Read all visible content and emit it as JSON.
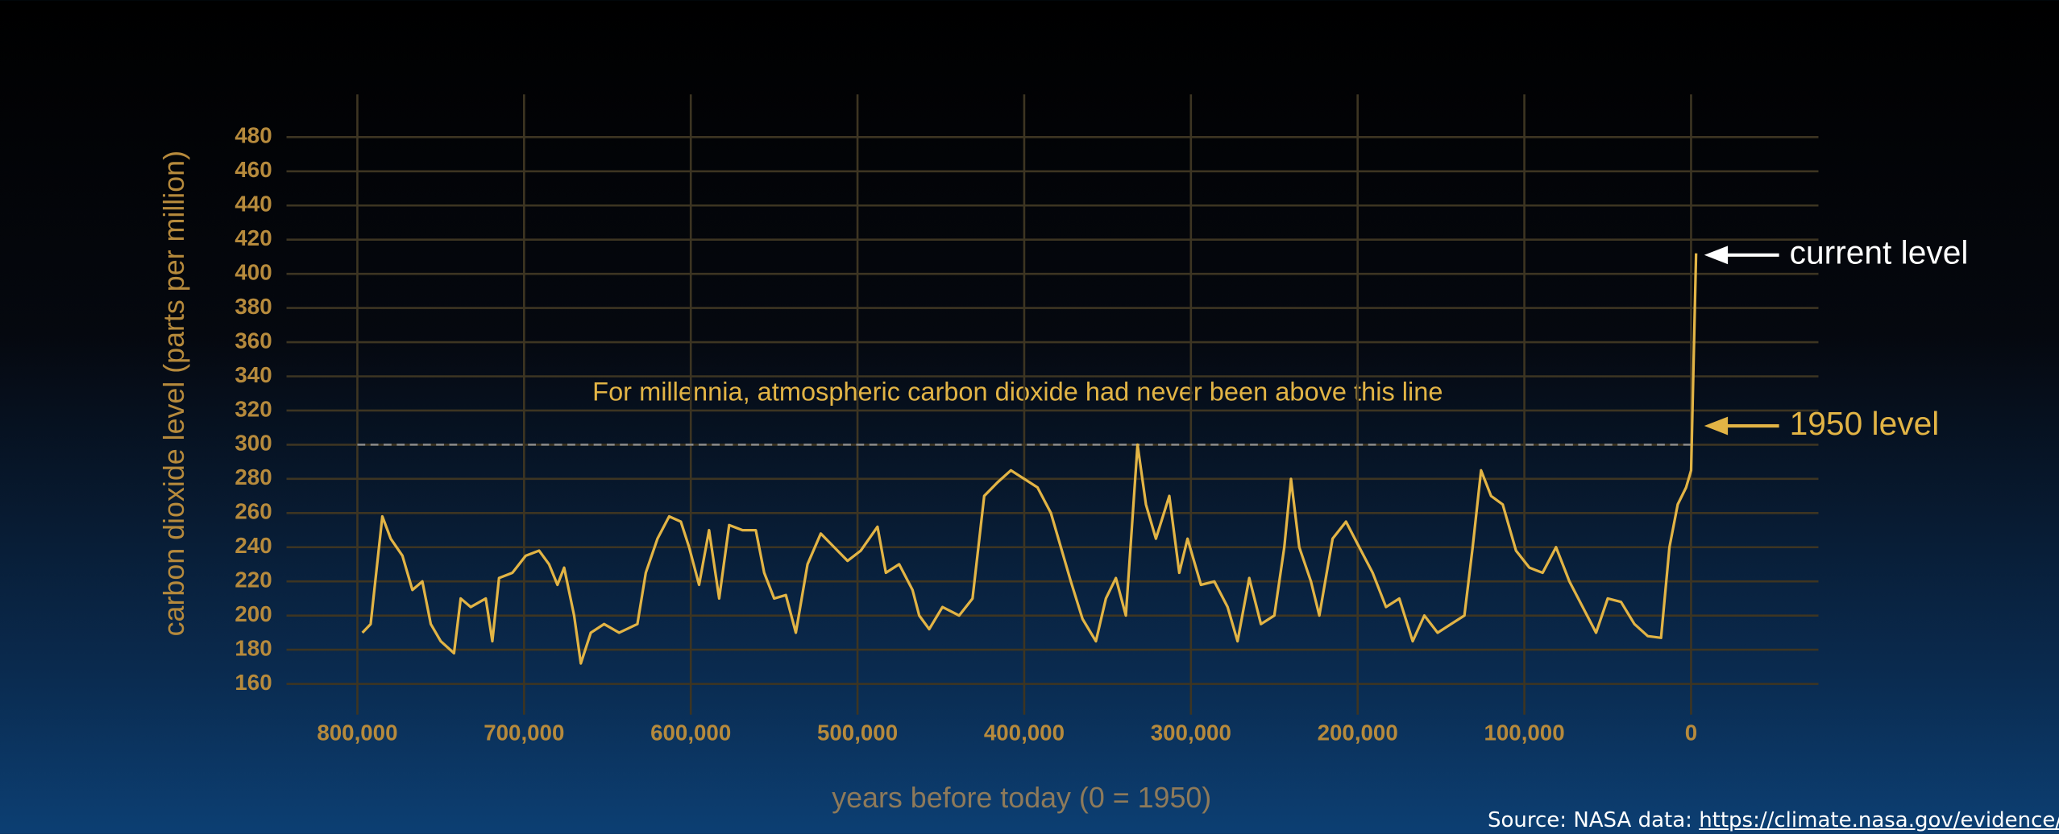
{
  "chart_data": {
    "type": "line",
    "ylabel": "carbon dioxide level (parts per million)",
    "xlabel": "years before today (0 = 1950)",
    "color": "#e2b445",
    "x": [
      797000,
      792000,
      785000,
      780000,
      773000,
      767000,
      761000,
      756000,
      750000,
      742000,
      738000,
      732000,
      723000,
      719000,
      715000,
      707000,
      699000,
      691000,
      685000,
      680000,
      676000,
      670000,
      666000,
      660000,
      652000,
      643000,
      632000,
      627000,
      620000,
      613000,
      606000,
      601000,
      595000,
      589000,
      583000,
      577000,
      569000,
      561000,
      556000,
      550000,
      543000,
      537000,
      530000,
      522000,
      514000,
      506000,
      498000,
      488000,
      483000,
      475000,
      467000,
      463000,
      457000,
      449000,
      439000,
      431000,
      424000,
      416000,
      408000,
      400000,
      392000,
      384000,
      378000,
      372000,
      365000,
      357000,
      351000,
      345000,
      339000,
      332000,
      327000,
      321000,
      313000,
      307000,
      302000,
      294000,
      286000,
      278000,
      272000,
      265000,
      258000,
      250000,
      244000,
      240000,
      235000,
      228000,
      223000,
      215000,
      207000,
      199000,
      191000,
      183000,
      175000,
      167000,
      160000,
      152000,
      144000,
      136000,
      131000,
      126000,
      120000,
      113000,
      105000,
      97000,
      89000,
      81000,
      73000,
      65000,
      57000,
      50000,
      42000,
      34000,
      26000,
      18000,
      13000,
      8000,
      3000,
      0,
      -3000
    ],
    "values": [
      190,
      195,
      258,
      245,
      235,
      215,
      220,
      195,
      185,
      178,
      210,
      205,
      210,
      185,
      222,
      225,
      235,
      238,
      230,
      218,
      228,
      200,
      172,
      190,
      195,
      190,
      195,
      225,
      245,
      258,
      255,
      240,
      218,
      250,
      210,
      253,
      250,
      250,
      225,
      210,
      212,
      190,
      230,
      248,
      240,
      232,
      238,
      252,
      225,
      230,
      215,
      200,
      192,
      205,
      200,
      210,
      270,
      278,
      285,
      280,
      275,
      260,
      240,
      220,
      198,
      185,
      210,
      222,
      200,
      300,
      265,
      245,
      270,
      225,
      245,
      218,
      220,
      205,
      185,
      222,
      195,
      200,
      240,
      280,
      240,
      220,
      200,
      245,
      255,
      240,
      225,
      205,
      210,
      185,
      200,
      190,
      195,
      200,
      240,
      285,
      270,
      265,
      238,
      228,
      225,
      240,
      220,
      205,
      190,
      210,
      208,
      195,
      188,
      187,
      240,
      265,
      275,
      285,
      412
    ],
    "xlim": [
      842500,
      -76400
    ],
    "xticks": [
      {
        "value": 800000,
        "label": "800,000"
      },
      {
        "value": 700000,
        "label": "700,000"
      },
      {
        "value": 600000,
        "label": "600,000"
      },
      {
        "value": 500000,
        "label": "500,000"
      },
      {
        "value": 400000,
        "label": "400,000"
      },
      {
        "value": 300000,
        "label": "300,000"
      },
      {
        "value": 200000,
        "label": "200,000"
      },
      {
        "value": 100000,
        "label": "100,000"
      },
      0
    ],
    "ylim": [
      142,
      505
    ],
    "yticks": [
      160,
      180,
      200,
      220,
      240,
      260,
      280,
      300,
      320,
      340,
      360,
      380,
      400,
      420,
      440,
      460,
      480
    ],
    "grid": true,
    "reference_line": {
      "value": 300,
      "text": "For millennia, atmospheric carbon dioxide had never been above this line"
    },
    "annotations": [
      {
        "text": "current level",
        "value": 411,
        "color": "#ffffff"
      },
      {
        "text": "1950 level",
        "value": 311,
        "color": "#e2b445"
      }
    ]
  },
  "source": {
    "label": "Source: NASA data:",
    "url": "https://climate.nasa.gov/evidence/"
  }
}
